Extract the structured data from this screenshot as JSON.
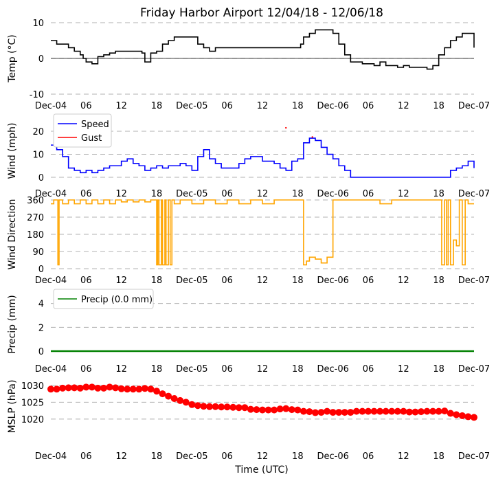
{
  "figure": {
    "title": "Friday Harbor Airport 12/04/18 - 12/06/18",
    "xlabel": "Time (UTC)",
    "colors": {
      "temp": "#000000",
      "speed": "#0000ff",
      "gust": "#ff0000",
      "direction": "#ffa500",
      "precip": "#008000",
      "mslp": "#ff0000",
      "grid": "#b0b0b0"
    }
  },
  "chart_data": [
    {
      "type": "line",
      "name": "temperature",
      "ylabel": "Temp (°C)",
      "ylim": [
        -10,
        10
      ],
      "yticks": [
        -10,
        0,
        10
      ],
      "xlim_hours": [
        0,
        72
      ],
      "xticks": [
        "Dec-04",
        "06",
        "12",
        "18",
        "Dec-05",
        "06",
        "12",
        "18",
        "Dec-06",
        "06",
        "12",
        "18",
        "Dec-07"
      ],
      "hline": 0,
      "series": [
        {
          "name": "Temp",
          "hours": [
            0,
            0.5,
            1,
            2,
            3,
            4,
            4.5,
            5,
            5.5,
            6,
            7,
            8,
            9,
            10,
            11,
            12,
            13,
            14,
            15,
            15.5,
            16,
            17,
            18,
            19,
            20,
            21,
            22,
            23,
            24,
            25,
            26,
            27,
            28,
            30,
            32,
            34,
            36,
            38,
            40,
            42,
            40.5,
            41,
            42,
            42.5,
            43,
            44,
            45,
            46,
            47,
            48,
            49,
            50,
            51,
            52,
            53,
            54,
            55,
            56,
            57,
            58,
            59,
            60,
            61,
            62,
            63,
            64,
            65,
            66,
            67,
            68,
            69,
            70,
            71,
            72
          ],
          "values": [
            5,
            5,
            4,
            4,
            3,
            2,
            2,
            1,
            0,
            -1,
            -1.5,
            0.5,
            1,
            1.5,
            2,
            2,
            2,
            2,
            2,
            1.5,
            -1,
            1.5,
            2,
            4,
            5,
            6,
            6,
            6,
            6,
            4,
            3,
            2,
            3,
            3,
            3,
            3,
            3,
            3,
            3,
            3,
            3,
            3,
            3,
            4,
            6,
            7,
            8,
            8,
            8,
            7,
            4,
            1,
            -1,
            -1,
            -1.5,
            -1.5,
            -2,
            -1,
            -2,
            -2,
            -2.5,
            -2,
            -2.5,
            -2.5,
            -2.5,
            -3,
            -2,
            1,
            3,
            5,
            6,
            7,
            7,
            3
          ]
        }
      ]
    },
    {
      "type": "line",
      "name": "wind",
      "ylabel": "Wind (mph)",
      "ylim": [
        0,
        23
      ],
      "yticks": [
        0,
        10,
        20
      ],
      "xlim_hours": [
        0,
        72
      ],
      "xticks": [
        "Dec-04",
        "06",
        "12",
        "18",
        "Dec-05",
        "06",
        "12",
        "18",
        "Dec-06",
        "06",
        "12",
        "18",
        "Dec-07"
      ],
      "series": [
        {
          "name": "Speed",
          "hours": [
            0,
            1,
            2,
            3,
            4,
            5,
            6,
            7,
            8,
            9,
            10,
            11,
            12,
            13,
            14,
            15,
            16,
            17,
            18,
            19,
            20,
            21,
            22,
            23,
            24,
            25,
            26,
            27,
            28,
            29,
            30,
            31,
            32,
            33,
            34,
            35,
            36,
            37,
            38,
            39,
            40,
            41,
            42,
            43,
            44,
            45,
            46,
            47,
            48,
            49,
            50,
            51,
            52,
            53,
            54,
            55,
            56,
            57,
            58,
            59,
            60,
            61,
            62,
            63,
            64,
            65,
            66,
            67,
            68,
            69,
            70,
            71,
            72
          ],
          "values": [
            14,
            12,
            9,
            4,
            3,
            2,
            3,
            2,
            3,
            4,
            5,
            5,
            7,
            8,
            6,
            5,
            3,
            4,
            5,
            4,
            5,
            5,
            6,
            5,
            3,
            9,
            12,
            8,
            6,
            4,
            4,
            4,
            6,
            8,
            9,
            9,
            7,
            7,
            6,
            4,
            3,
            7,
            8,
            15,
            17,
            16,
            13,
            10,
            8,
            5,
            3,
            0,
            0,
            0,
            0,
            0,
            0,
            0,
            0,
            0,
            0,
            0,
            0,
            0,
            0,
            0,
            0,
            0,
            3,
            4,
            5,
            7,
            4
          ]
        },
        {
          "name": "Gust",
          "hours": [
            40,
            44.5
          ],
          "values": [
            21.5,
            17.5
          ]
        }
      ],
      "legend": [
        "Speed",
        "Gust"
      ]
    },
    {
      "type": "line",
      "name": "wind_direction",
      "ylabel": "Wind Direction",
      "ylim": [
        0,
        360
      ],
      "yticks": [
        0,
        90,
        180,
        270,
        360
      ],
      "xlim_hours": [
        0,
        72
      ],
      "xticks": [
        "Dec-04",
        "06",
        "12",
        "18",
        "Dec-05",
        "06",
        "12",
        "18",
        "Dec-06",
        "06",
        "12",
        "18",
        "Dec-07"
      ],
      "series": [
        {
          "name": "Direction",
          "hours": [
            0,
            0.5,
            1,
            1.2,
            1.4,
            2,
            3,
            4,
            5,
            6,
            7,
            8,
            9,
            10,
            11,
            12,
            13,
            14,
            15,
            16,
            17,
            17.5,
            18,
            18.2,
            18.4,
            18.8,
            19,
            19.4,
            19.6,
            20,
            20.3,
            20.6,
            21,
            22,
            24,
            26,
            28,
            30,
            32,
            34,
            36,
            38,
            40,
            41,
            42.5,
            43,
            43.5,
            44,
            45,
            46,
            47,
            48,
            50,
            52,
            54,
            56,
            58,
            60,
            62,
            64,
            66,
            66.5,
            67,
            67.3,
            67.6,
            68,
            68.5,
            69,
            69.5,
            70,
            70.5,
            71,
            72
          ],
          "values": [
            340,
            360,
            360,
            20,
            360,
            340,
            360,
            340,
            360,
            340,
            360,
            340,
            360,
            340,
            360,
            350,
            360,
            350,
            360,
            350,
            360,
            360,
            20,
            360,
            20,
            360,
            20,
            360,
            20,
            360,
            20,
            360,
            340,
            360,
            340,
            360,
            340,
            360,
            340,
            360,
            340,
            360,
            360,
            360,
            360,
            20,
            40,
            60,
            50,
            30,
            60,
            360,
            360,
            360,
            360,
            340,
            360,
            360,
            360,
            360,
            360,
            20,
            360,
            20,
            360,
            20,
            150,
            120,
            360,
            20,
            360,
            340,
            340
          ]
        }
      ]
    },
    {
      "type": "line",
      "name": "precipitation",
      "ylabel": "Precip (mm)",
      "ylim": [
        0,
        4.5
      ],
      "yticks": [
        0,
        2,
        4
      ],
      "xlim_hours": [
        0,
        72
      ],
      "xticks": [
        "Dec-04",
        "06",
        "12",
        "18",
        "Dec-05",
        "06",
        "12",
        "18",
        "Dec-06",
        "06",
        "12",
        "18",
        "Dec-07"
      ],
      "series": [
        {
          "name": "Precip (0.0 mm)",
          "hours": [
            0,
            72
          ],
          "values": [
            0,
            0
          ]
        }
      ],
      "legend": [
        "Precip (0.0 mm)"
      ]
    },
    {
      "type": "scatter",
      "name": "mslp",
      "ylabel": "MSLP (hPa)",
      "ylim": [
        1016.5,
        1031
      ],
      "yticks": [
        1020,
        1025,
        1030
      ],
      "xlim_hours": [
        0,
        72
      ],
      "xticks": [
        "Dec-04",
        "06",
        "12",
        "18",
        "Dec-05",
        "06",
        "12",
        "18",
        "Dec-06",
        "06",
        "12",
        "18",
        "Dec-07"
      ],
      "series": [
        {
          "name": "MSLP",
          "hours": [
            0,
            1,
            2,
            3,
            4,
            5,
            6,
            7,
            8,
            9,
            10,
            11,
            12,
            13,
            14,
            15,
            16,
            17,
            18,
            19,
            20,
            21,
            22,
            23,
            24,
            25,
            26,
            27,
            28,
            29,
            30,
            31,
            32,
            33,
            34,
            35,
            36,
            37,
            38,
            39,
            40,
            41,
            42,
            43,
            44,
            45,
            46,
            47,
            48,
            49,
            50,
            51,
            52,
            53,
            54,
            55,
            56,
            57,
            58,
            59,
            60,
            61,
            62,
            63,
            64,
            65,
            66,
            67,
            68,
            69,
            70,
            71,
            72
          ],
          "values": [
            1028.9,
            1028.9,
            1029.2,
            1029.3,
            1029.3,
            1029.2,
            1029.5,
            1029.5,
            1029.2,
            1029.2,
            1029.5,
            1029.3,
            1029.0,
            1028.9,
            1028.9,
            1028.9,
            1029.1,
            1028.9,
            1028.3,
            1027.5,
            1026.8,
            1026.1,
            1025.5,
            1025.0,
            1024.3,
            1024.0,
            1023.8,
            1023.7,
            1023.7,
            1023.6,
            1023.6,
            1023.5,
            1023.4,
            1023.4,
            1022.9,
            1022.8,
            1022.7,
            1022.7,
            1022.7,
            1023.0,
            1023.1,
            1022.8,
            1022.7,
            1022.3,
            1022.2,
            1021.9,
            1022.0,
            1022.3,
            1022.0,
            1022.0,
            1022.0,
            1022.0,
            1022.3,
            1022.3,
            1022.3,
            1022.3,
            1022.3,
            1022.3,
            1022.3,
            1022.3,
            1022.3,
            1022.1,
            1022.1,
            1022.2,
            1022.3,
            1022.3,
            1022.3,
            1022.4,
            1021.7,
            1021.3,
            1021.0,
            1020.7,
            1020.5
          ]
        }
      ]
    }
  ]
}
